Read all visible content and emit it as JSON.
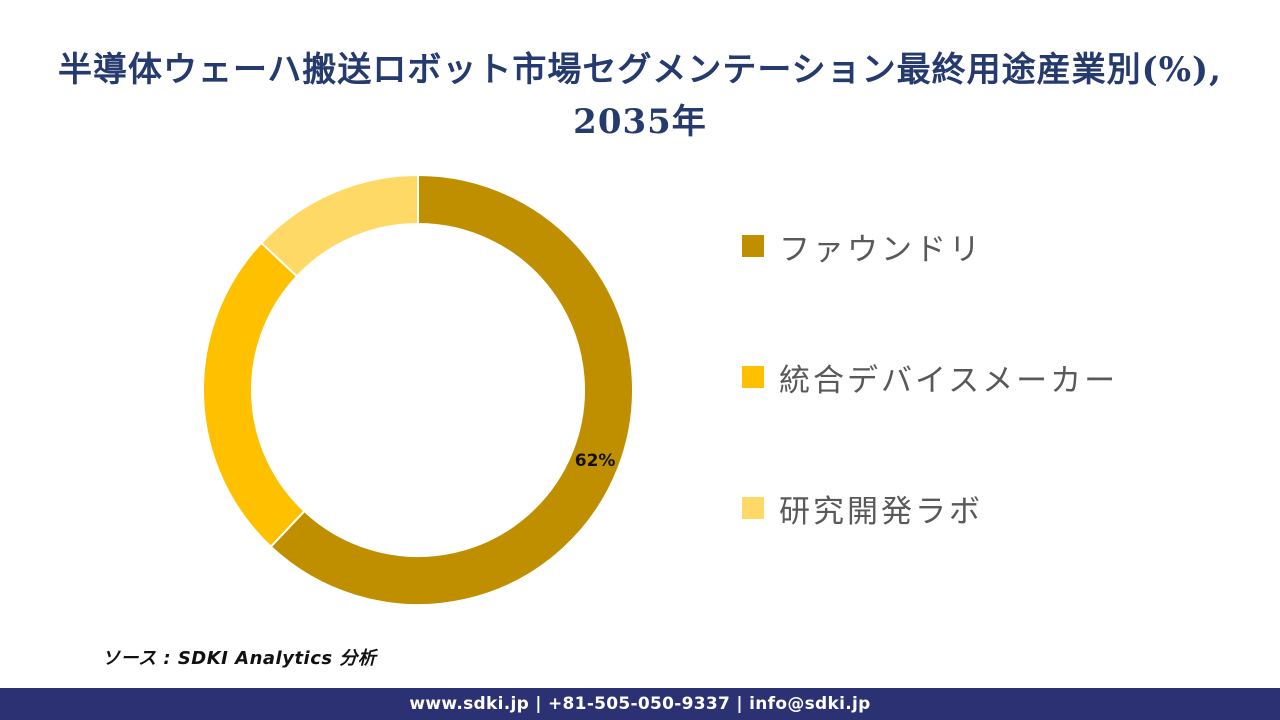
{
  "title": {
    "line1": "半導体ウェーハ搬送ロボット市場セグメンテーション最終用途産業別(%),",
    "line2": "2035年",
    "color": "#253A6D"
  },
  "chart_data": {
    "type": "pie",
    "subtype": "donut",
    "title": "半導体ウェーハ搬送ロボット市場セグメンテーション最終用途産業別(%), 2035年",
    "unit": "%",
    "categories": [
      "ファウンドリ",
      "統合デバイスメーカー",
      "研究開発ラボ"
    ],
    "values": [
      62,
      25,
      13
    ],
    "colors": [
      "#BF8F00",
      "#FFC000",
      "#FFD966"
    ],
    "start_angle_deg": 0,
    "direction": "clockwise",
    "donut_hole_ratio": 0.77,
    "segment_border_color": "#FFFFFF",
    "legend_position": "right",
    "data_labels": [
      {
        "segment_index": 0,
        "text": "62%"
      }
    ]
  },
  "legend": {
    "items": [
      {
        "label": "ファウンドリ",
        "color": "#BF8F00"
      },
      {
        "label": "統合デバイスメーカー",
        "color": "#FFC000"
      },
      {
        "label": "研究開発ラボ",
        "color": "#FFD966"
      }
    ],
    "text_color": "#595959"
  },
  "source": {
    "text": "ソース : SDKI Analytics 分析"
  },
  "footer": {
    "text": "www.sdki.jp | +81-505-050-9337 | info@sdki.jp",
    "background": "#2B3173",
    "text_color": "#FFFFFF"
  }
}
